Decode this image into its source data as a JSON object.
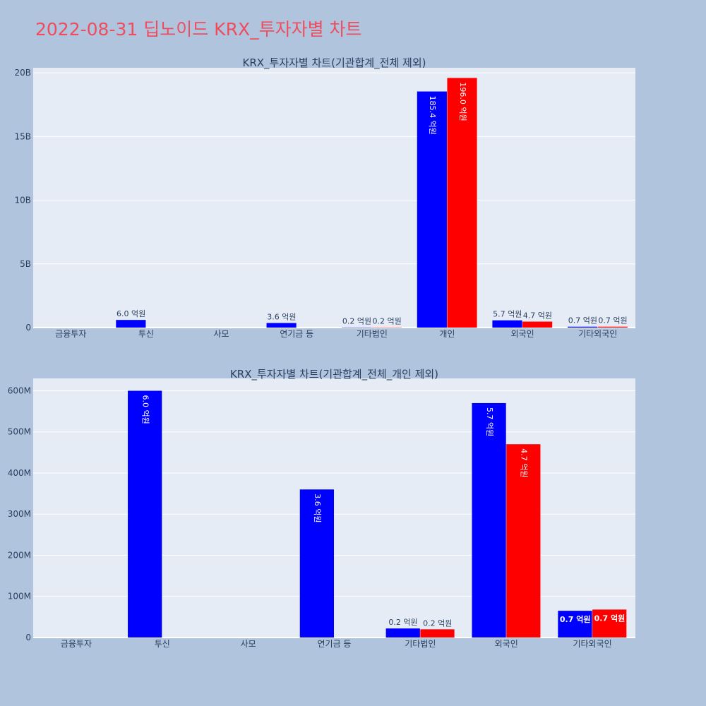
{
  "title": "2022-08-31 딥노이드 KRX_투자자별 차트",
  "colors": {
    "buy": "#0000ff",
    "sell": "#ff0000",
    "plot_bg": "#e5ecf6",
    "page_bg": "#b0c4de",
    "title": "#ef4d5e"
  },
  "chart_data": [
    {
      "type": "bar",
      "title": "KRX_투자자별 차트(기관합계_전체 제외)",
      "categories": [
        "금융투자",
        "투신",
        "사모",
        "연기금 등",
        "기타법인",
        "개인",
        "외국인",
        "기타외국인"
      ],
      "series": [
        {
          "values": [
            0,
            600000000,
            0,
            360000000,
            20000000,
            18540000000,
            570000000,
            70000000
          ],
          "labels": [
            "",
            "6.0 억원",
            "",
            "3.6 억원",
            "0.2 억원",
            "185.4 억원",
            "5.7 억원",
            "0.7 억원"
          ]
        },
        {
          "values": [
            0,
            0,
            0,
            0,
            20000000,
            19600000000,
            470000000,
            70000000
          ],
          "labels": [
            "",
            "",
            "",
            "",
            "0.2 억원",
            "196.0 억원",
            "4.7 억원",
            "0.7 억원"
          ]
        }
      ],
      "yticks": [
        0,
        5000000000,
        10000000000,
        15000000000,
        20000000000
      ],
      "yticklabels": [
        "0",
        "5B",
        "10B",
        "15B",
        "20B"
      ],
      "ylim": [
        0,
        20400000000
      ],
      "grid": true
    },
    {
      "type": "bar",
      "title": "KRX_투자자별 차트(기관합계_전체_개인 제외)",
      "categories": [
        "금융투자",
        "투신",
        "사모",
        "연기금 등",
        "기타법인",
        "외국인",
        "기타외국인"
      ],
      "series": [
        {
          "values": [
            0,
            600000000,
            0,
            360000000,
            22000000,
            570000000,
            65000000
          ],
          "labels": [
            "",
            "6.0 억원",
            "",
            "3.6 억원",
            "0.2 억원",
            "5.7 억원",
            "0.7 억원"
          ]
        },
        {
          "values": [
            0,
            0,
            0,
            0,
            20000000,
            470000000,
            68000000
          ],
          "labels": [
            "",
            "",
            "",
            "",
            "0.2 억원",
            "4.7 억원",
            "0.7 억원"
          ]
        }
      ],
      "yticks": [
        0,
        100000000,
        200000000,
        300000000,
        400000000,
        500000000,
        600000000
      ],
      "yticklabels": [
        "0",
        "100M",
        "200M",
        "300M",
        "400M",
        "500M",
        "600M"
      ],
      "ylim": [
        0,
        630000000
      ],
      "grid": true
    }
  ]
}
